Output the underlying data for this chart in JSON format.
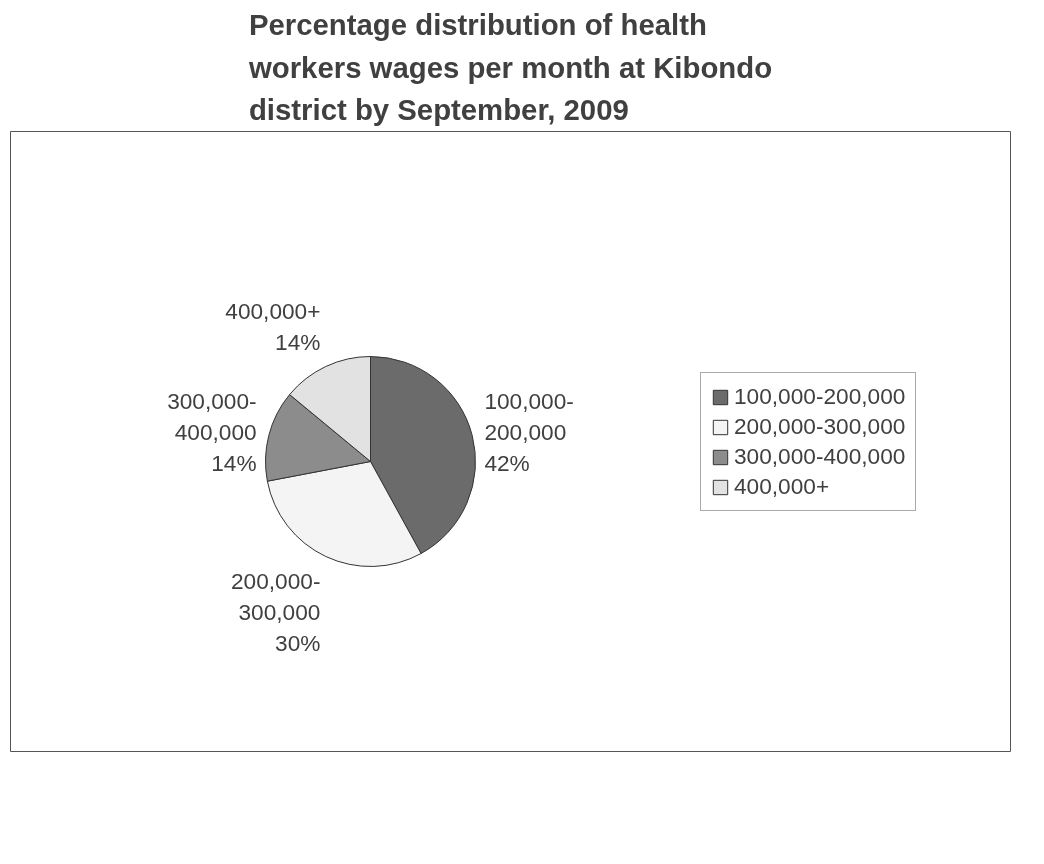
{
  "chart_data": {
    "type": "pie",
    "title": "Percentage distribution of health workers wages per month at Kibondo district by September, 2009",
    "categories": [
      "100,000-200,000",
      "200,000-300,000",
      "300,000-400,000",
      "400,000+"
    ],
    "values": [
      42,
      30,
      14,
      14
    ],
    "colors": [
      "#6b6b6b",
      "#f4f4f4",
      "#8c8c8c",
      "#e2e2e2"
    ],
    "value_labels": [
      "100,000-\n200,000\n42%",
      "200,000-\n300,000\n30%",
      "300,000-\n400,000\n14%",
      "400,000+\n14%"
    ],
    "legend": "right"
  }
}
